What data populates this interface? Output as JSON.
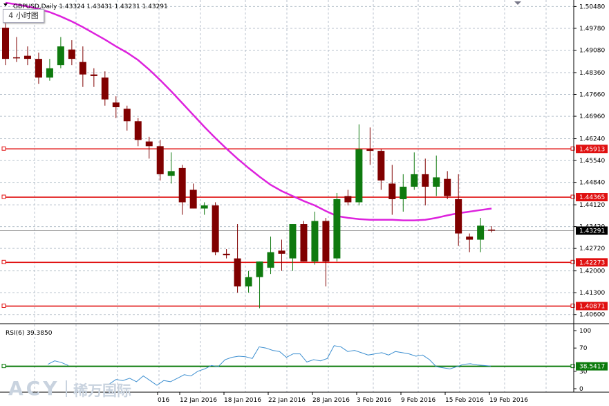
{
  "header": {
    "symbol_line": "GBPUSD,Daily  1.43324 1.43431 1.43231 1.43291"
  },
  "timeframe_button": {
    "label": "4 小时图"
  },
  "watermark": {
    "brand": "ACY",
    "chinese": "稀万国际"
  },
  "colors": {
    "bull": "#0f7a0f",
    "bear": "#800000",
    "ma": "#dd22dd",
    "level": "#e01010",
    "rsi": "#3d8fd0",
    "rsi_level": "#0a7a0a"
  },
  "chart_data": [
    {
      "type": "candlestick",
      "title": "",
      "price_ylim": [
        1.4035,
        1.506
      ],
      "price_ticks": [
        "1.50480",
        "1.49780",
        "1.49080",
        "1.48360",
        "1.47660",
        "1.46960",
        "1.46240",
        "1.45540",
        "1.44840",
        "1.44120",
        "1.43420",
        "1.42720",
        "1.42000",
        "1.41300",
        "1.40600"
      ],
      "x_labels": [
        "016",
        "12 Jan 2016",
        "18 Jan 2016",
        "22 Jan 2016",
        "28 Jan 2016",
        "3 Feb 2016",
        "9 Feb 2016",
        "15 Feb 2016",
        "19 Feb 2016"
      ],
      "candles": [
        {
          "o": 1.498,
          "h": 1.504,
          "l": 1.486,
          "c": 1.488
        },
        {
          "o": 1.4885,
          "h": 1.495,
          "l": 1.487,
          "c": 1.4882
        },
        {
          "o": 1.489,
          "h": 1.492,
          "l": 1.486,
          "c": 1.488
        },
        {
          "o": 1.488,
          "h": 1.49,
          "l": 1.48,
          "c": 1.482
        },
        {
          "o": 1.482,
          "h": 1.488,
          "l": 1.481,
          "c": 1.485
        },
        {
          "o": 1.486,
          "h": 1.495,
          "l": 1.485,
          "c": 1.492
        },
        {
          "o": 1.491,
          "h": 1.494,
          "l": 1.486,
          "c": 1.488
        },
        {
          "o": 1.487,
          "h": 1.492,
          "l": 1.479,
          "c": 1.483
        },
        {
          "o": 1.483,
          "h": 1.485,
          "l": 1.479,
          "c": 1.4825
        },
        {
          "o": 1.482,
          "h": 1.484,
          "l": 1.473,
          "c": 1.475
        },
        {
          "o": 1.474,
          "h": 1.476,
          "l": 1.469,
          "c": 1.4725
        },
        {
          "o": 1.472,
          "h": 1.473,
          "l": 1.465,
          "c": 1.468
        },
        {
          "o": 1.468,
          "h": 1.469,
          "l": 1.46,
          "c": 1.462
        },
        {
          "o": 1.4615,
          "h": 1.463,
          "l": 1.456,
          "c": 1.46
        },
        {
          "o": 1.46,
          "h": 1.462,
          "l": 1.449,
          "c": 1.451
        },
        {
          "o": 1.4505,
          "h": 1.458,
          "l": 1.448,
          "c": 1.452
        },
        {
          "o": 1.453,
          "h": 1.454,
          "l": 1.438,
          "c": 1.442
        },
        {
          "o": 1.446,
          "h": 1.448,
          "l": 1.44,
          "c": 1.44
        },
        {
          "o": 1.44,
          "h": 1.442,
          "l": 1.438,
          "c": 1.441
        },
        {
          "o": 1.441,
          "h": 1.442,
          "l": 1.425,
          "c": 1.426
        },
        {
          "o": 1.4255,
          "h": 1.427,
          "l": 1.424,
          "c": 1.425
        },
        {
          "o": 1.424,
          "h": 1.435,
          "l": 1.413,
          "c": 1.415
        },
        {
          "o": 1.415,
          "h": 1.42,
          "l": 1.413,
          "c": 1.418
        },
        {
          "o": 1.418,
          "h": 1.423,
          "l": 1.408,
          "c": 1.423
        },
        {
          "o": 1.421,
          "h": 1.431,
          "l": 1.419,
          "c": 1.426
        },
        {
          "o": 1.4265,
          "h": 1.43,
          "l": 1.42,
          "c": 1.4255
        },
        {
          "o": 1.424,
          "h": 1.435,
          "l": 1.42,
          "c": 1.435
        },
        {
          "o": 1.435,
          "h": 1.436,
          "l": 1.423,
          "c": 1.423
        },
        {
          "o": 1.423,
          "h": 1.439,
          "l": 1.422,
          "c": 1.436
        },
        {
          "o": 1.436,
          "h": 1.437,
          "l": 1.415,
          "c": 1.423
        },
        {
          "o": 1.424,
          "h": 1.445,
          "l": 1.423,
          "c": 1.443
        },
        {
          "o": 1.444,
          "h": 1.446,
          "l": 1.441,
          "c": 1.442
        },
        {
          "o": 1.442,
          "h": 1.467,
          "l": 1.441,
          "c": 1.459
        },
        {
          "o": 1.459,
          "h": 1.466,
          "l": 1.454,
          "c": 1.4585
        },
        {
          "o": 1.4585,
          "h": 1.459,
          "l": 1.446,
          "c": 1.449
        },
        {
          "o": 1.448,
          "h": 1.454,
          "l": 1.438,
          "c": 1.443
        },
        {
          "o": 1.443,
          "h": 1.451,
          "l": 1.439,
          "c": 1.447
        },
        {
          "o": 1.447,
          "h": 1.458,
          "l": 1.446,
          "c": 1.451
        },
        {
          "o": 1.451,
          "h": 1.456,
          "l": 1.441,
          "c": 1.447
        },
        {
          "o": 1.447,
          "h": 1.457,
          "l": 1.444,
          "c": 1.45
        },
        {
          "o": 1.4495,
          "h": 1.452,
          "l": 1.443,
          "c": 1.444
        },
        {
          "o": 1.443,
          "h": 1.451,
          "l": 1.428,
          "c": 1.432
        },
        {
          "o": 1.431,
          "h": 1.432,
          "l": 1.426,
          "c": 1.43
        },
        {
          "o": 1.43,
          "h": 1.437,
          "l": 1.426,
          "c": 1.4345
        },
        {
          "o": 1.43324,
          "h": 1.43431,
          "l": 1.43231,
          "c": 1.43291
        }
      ],
      "moving_average": [
        1.506,
        1.5055,
        1.5048,
        1.504,
        1.503,
        1.5016,
        1.5,
        1.4982,
        1.4962,
        1.4942,
        1.492,
        1.49,
        1.4876,
        1.4846,
        1.4812,
        1.4776,
        1.4738,
        1.47,
        1.4662,
        1.4626,
        1.4592,
        1.456,
        1.453,
        1.4502,
        1.4476,
        1.4456,
        1.444,
        1.4424,
        1.441,
        1.4392,
        1.4376,
        1.437,
        1.4366,
        1.4364,
        1.4364,
        1.4364,
        1.4362,
        1.4362,
        1.4364,
        1.437,
        1.4378,
        1.4385,
        1.439,
        1.4395,
        1.44
      ],
      "levels": [
        {
          "value": 1.45913,
          "label": "1.45913"
        },
        {
          "value": 1.44365,
          "label": "1.44365"
        },
        {
          "value": 1.42273,
          "label": "1.42273"
        },
        {
          "value": 1.40871,
          "label": "1.40871"
        }
      ],
      "current_price": {
        "value": 1.43291,
        "label": "1.43291"
      }
    },
    {
      "type": "line",
      "title": "RSI(6) 39.3850",
      "ylim": [
        0,
        100
      ],
      "ticks": [
        "100",
        "70",
        "30",
        "0"
      ],
      "level": {
        "value": 38.5417,
        "label": "38.5417"
      },
      "values": [
        null,
        null,
        null,
        null,
        null,
        42,
        48,
        45,
        40,
        null,
        null,
        null,
        null,
        null,
        8,
        16,
        14,
        18,
        12,
        22,
        14,
        6,
        14,
        12,
        18,
        24,
        22,
        30,
        34,
        40,
        38,
        50,
        54,
        56,
        55,
        52,
        72,
        70,
        66,
        64,
        54,
        60,
        60,
        46,
        50,
        48,
        52,
        74,
        72,
        64,
        66,
        62,
        58,
        60,
        62,
        58,
        64,
        62,
        60,
        56,
        58,
        50,
        38,
        36,
        34,
        38,
        42,
        43,
        41,
        40,
        39
      ]
    }
  ]
}
